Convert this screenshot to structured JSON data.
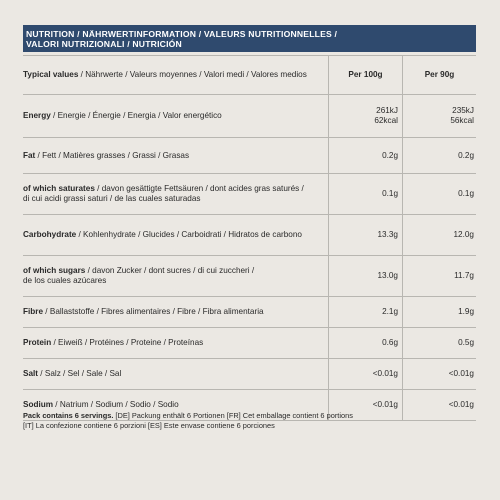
{
  "header": {
    "line1_bold": "NUTRITION",
    "line1_rest": " / NÄHRWERTINFORMATION / VALEURS NUTRITIONNELLES /",
    "line2": "VALORI NUTRIZIONALI / NUTRICIÓN"
  },
  "columns": {
    "label_bold": "Typical values",
    "label_rest": " / Nährwerte /  Valeurs moyennes / Valori medi / Valores medios",
    "per100": "Per 100g",
    "per90": "Per 90g"
  },
  "rows": [
    {
      "bold": "Energy",
      "rest": " / Energie / Énergie / Energia / Valor energético",
      "v1a": "261kJ",
      "v1b": "62kcal",
      "v2a": "235kJ",
      "v2b": "56kcal"
    },
    {
      "bold": "Fat",
      "rest": " / Fett / Matières grasses / Grassi / Grasas",
      "v1": "0.2g",
      "v2": "0.2g"
    },
    {
      "bold": "of which saturates",
      "rest": " / davon gesättigte Fettsäuren / dont acides gras saturés /",
      "rest2": "di cui acidi grassi saturi / de las cuales saturadas",
      "v1": "0.1g",
      "v2": "0.1g"
    },
    {
      "bold": "Carbohydrate",
      "rest": " / Kohlenhydrate / Glucides / Carboidrati / Hidratos de carbono",
      "v1": "13.3g",
      "v2": "12.0g"
    },
    {
      "bold": "of which sugars",
      "rest": " / davon Zucker / dont sucres / di cui zuccheri /",
      "rest2": "de los cuales azúcares",
      "v1": "13.0g",
      "v2": "11.7g"
    },
    {
      "bold": "Fibre",
      "rest": " / Ballaststoffe / Fibres alimentaires / Fibre / Fibra alimentaria",
      "v1": "2.1g",
      "v2": "1.9g"
    },
    {
      "bold": "Protein",
      "rest": " / Eiweiß / Protéines / Proteine / Proteínas",
      "v1": "0.6g",
      "v2": "0.5g"
    },
    {
      "bold": "Salt",
      "rest": " / Salz / Sel / Sale / Sal",
      "v1": "<0.01g",
      "v2": "<0.01g"
    },
    {
      "bold": "Sodium",
      "rest": " / Natrium / Sodium / Sodio / Sodio",
      "v1": "<0.01g",
      "v2": "<0.01g"
    }
  ],
  "footer": {
    "bold": "Pack contains 6 servings.",
    "rest": " [DE] Packung enthält 6 Portionen [FR] Cet emballage contient 6 portions",
    "line2": "[IT] La confezione contiene 6 porzioni [ES] Este envase contiene 6 porciones"
  }
}
